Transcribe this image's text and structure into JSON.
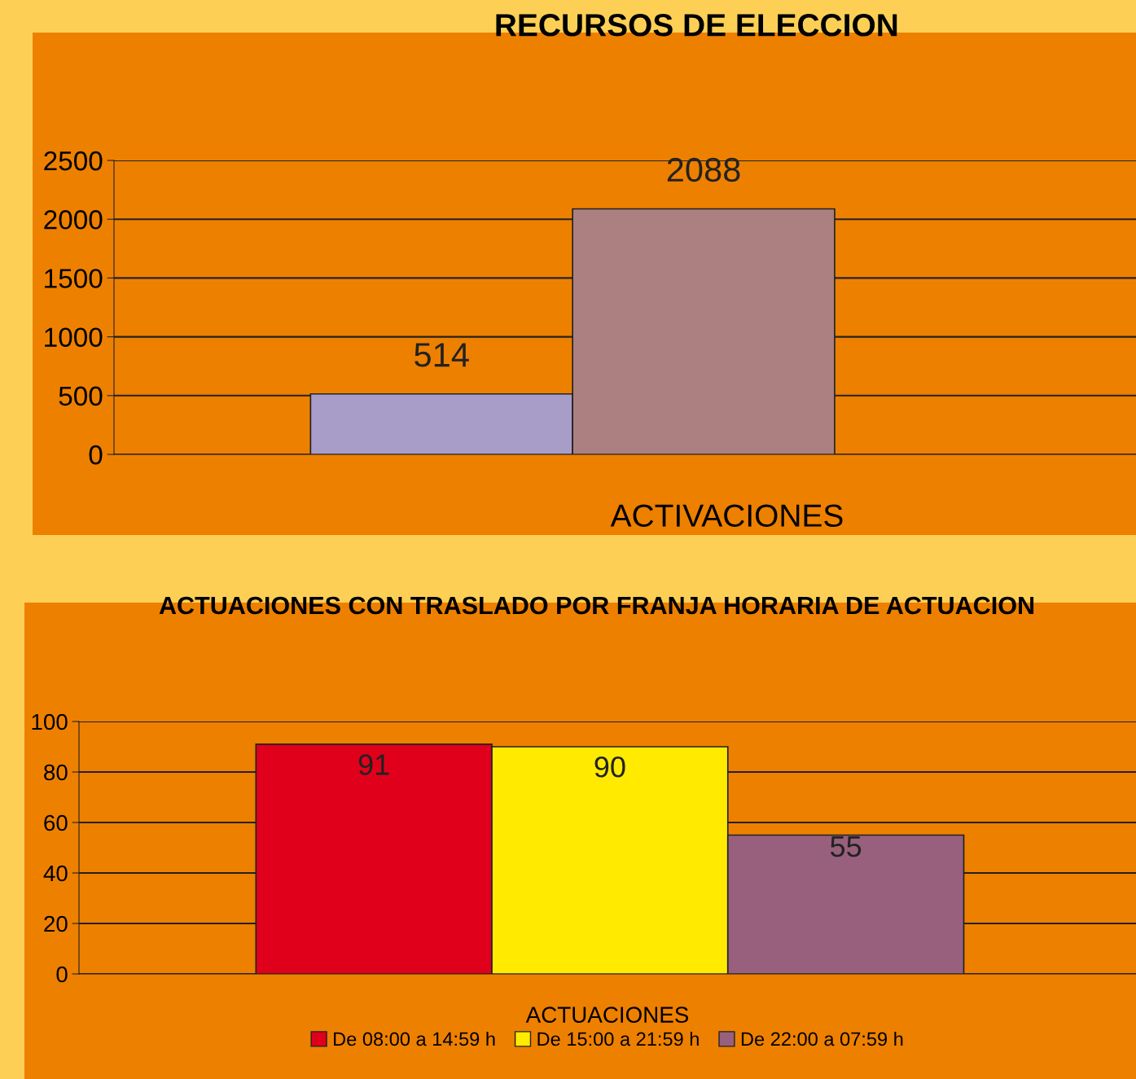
{
  "chart_data": [
    {
      "type": "bar",
      "title": "RECURSOS DE ELECCION",
      "xlabel": "ACTIVACIONES",
      "categories": [
        null,
        null
      ],
      "values": [
        514,
        2088
      ],
      "colors": [
        "#a89cc8",
        "#ac8080"
      ],
      "ylim": [
        0,
        2500
      ],
      "yticks": [
        0,
        500,
        1000,
        1500,
        2000,
        2500
      ],
      "grid": "y",
      "data_labels": true
    },
    {
      "type": "bar",
      "title": "ACTUACIONES CON TRASLADO POR FRANJA HORARIA DE ACTUACION",
      "xlabel": "ACTUACIONES",
      "categories": [
        null
      ],
      "series": [
        {
          "name": "De 08:00 a 14:59 h",
          "color": "#e0001b",
          "values": [
            91
          ]
        },
        {
          "name": "De 15:00 a 21:59 h",
          "color": "#ffea00",
          "values": [
            90
          ]
        },
        {
          "name": "De 22:00 a 07:59 h",
          "color": "#98607c",
          "values": [
            55
          ]
        }
      ],
      "ylim": [
        0,
        100
      ],
      "yticks": [
        0,
        20,
        40,
        60,
        80,
        100
      ],
      "grid": "y",
      "data_labels": true,
      "legend": "bottom"
    }
  ]
}
